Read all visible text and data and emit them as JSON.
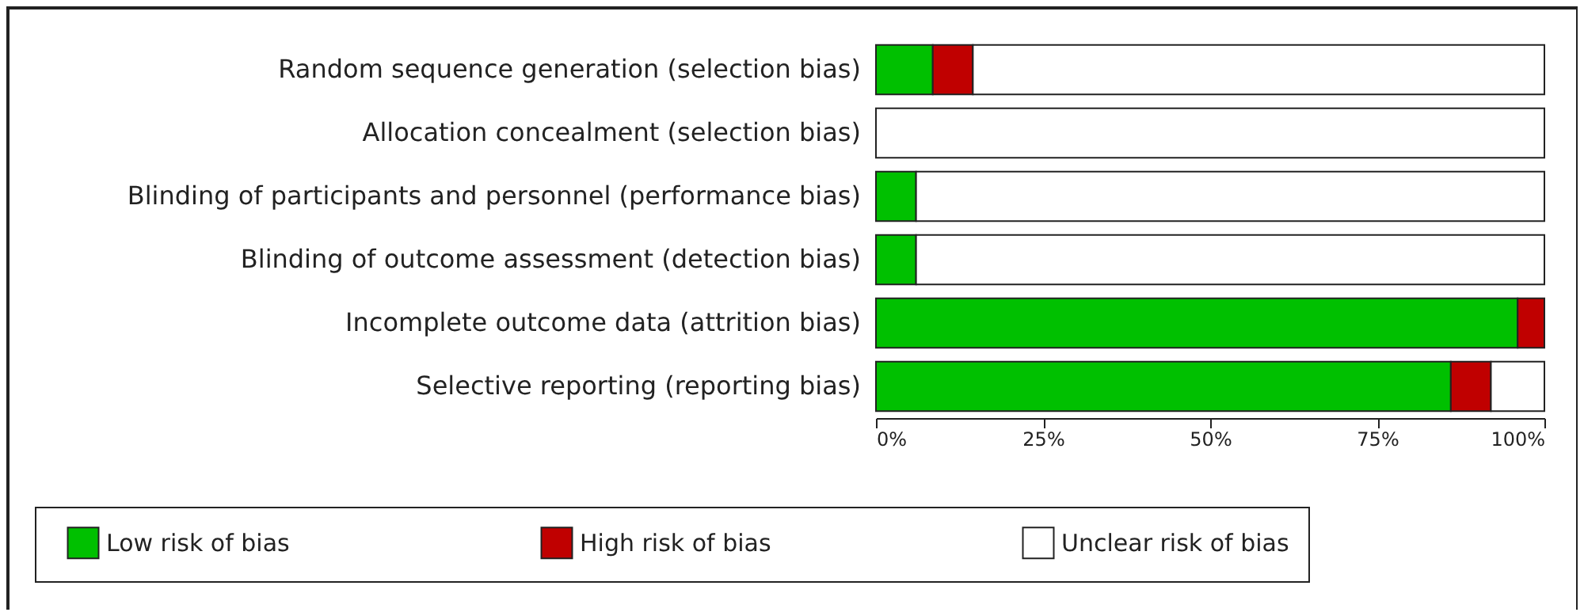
{
  "chart_data": {
    "type": "bar",
    "orientation": "horizontal",
    "stacked": true,
    "categories": [
      "Random sequence generation (selection bias)",
      "Allocation concealment (selection bias)",
      "Blinding of participants and personnel (performance bias)",
      "Blinding of outcome assessment (detection bias)",
      "Incomplete outcome data (attrition bias)",
      "Selective reporting (reporting bias)"
    ],
    "series": [
      {
        "name": "Low risk of bias",
        "color": "#00c000",
        "values": [
          8.5,
          0,
          6,
          6,
          96,
          86
        ]
      },
      {
        "name": "High risk of bias",
        "color": "#c00000",
        "values": [
          6,
          0,
          0,
          0,
          4,
          6
        ]
      },
      {
        "name": "Unclear risk of bias",
        "color": "#ffffff",
        "values": [
          85.5,
          100,
          94,
          94,
          0,
          8
        ]
      }
    ],
    "xlim": [
      0,
      100
    ],
    "xticks": [
      {
        "value": 0,
        "label": "0%"
      },
      {
        "value": 25,
        "label": "25%"
      },
      {
        "value": 50,
        "label": "50%"
      },
      {
        "value": 75,
        "label": "75%"
      },
      {
        "value": 100,
        "label": "100%"
      }
    ],
    "grid": false,
    "legend": "bottom"
  }
}
